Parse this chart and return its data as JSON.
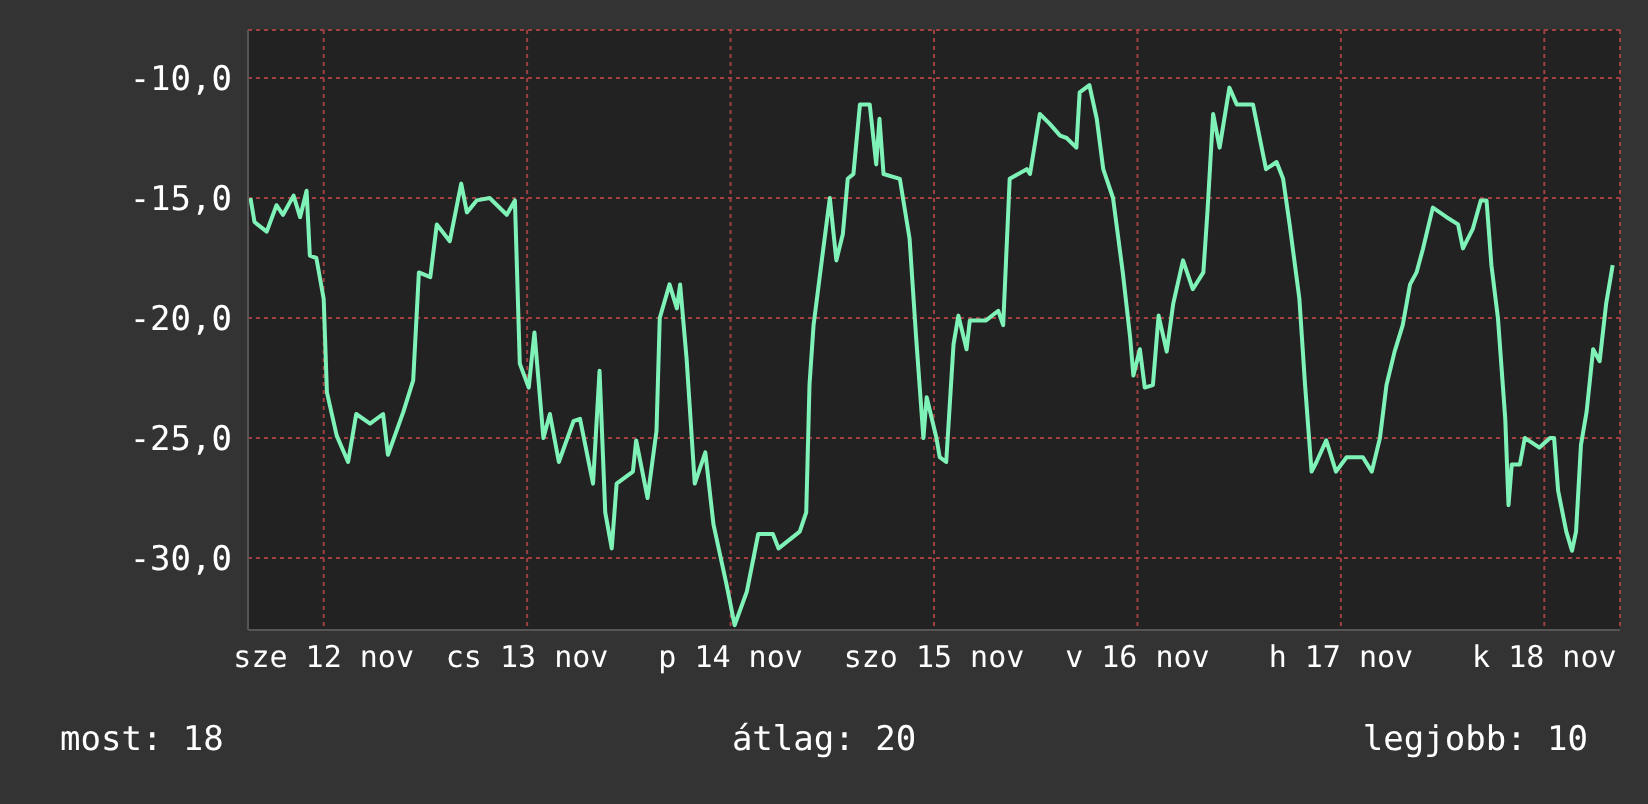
{
  "chart_data": {
    "type": "line",
    "x": [
      "--11-11T20:48",
      "--11-11T21:18",
      "--11-11T22:48",
      "--11-12T00:00",
      "--11-12T00:48",
      "--11-12T02:06",
      "--11-12T02:54",
      "--11-12T03:42",
      "--11-12T04:06",
      "--11-12T04:54",
      "--11-12T05:48",
      "--11-12T06:12",
      "--11-12T07:24",
      "--11-12T08:48",
      "--11-12T09:48",
      "--11-12T11:30",
      "--11-12T13:06",
      "--11-12T13:42",
      "--11-12T15:36",
      "--11-12T16:48",
      "--11-12T17:30",
      "--11-12T18:54",
      "--11-12T19:42",
      "--11-12T21:18",
      "--11-12T22:42",
      "--11-12T23:24",
      "--11-13T00:36",
      "--11-13T02:12",
      "--11-13T04:18",
      "--11-13T05:18",
      "--11-13T05:54",
      "--11-13T07:00",
      "--11-13T07:42",
      "--11-13T08:48",
      "--11-13T09:36",
      "--11-13T10:42",
      "--11-13T12:30",
      "--11-13T13:18",
      "--11-13T14:54",
      "--11-13T15:42",
      "--11-13T16:24",
      "--11-13T17:12",
      "--11-13T17:48",
      "--11-13T19:48",
      "--11-13T20:12",
      "--11-13T21:36",
      "--11-13T22:42",
      "--11-13T23:06",
      "--11-14T00:18",
      "--11-14T01:12",
      "--11-14T01:36",
      "--11-14T02:24",
      "--11-14T03:24",
      "--11-14T04:42",
      "--11-14T05:42",
      "--11-14T07:18",
      "--11-14T08:18",
      "--11-14T09:48",
      "--11-14T11:12",
      "--11-14T13:00",
      "--11-14T13:42",
      "--11-14T16:18",
      "--11-14T17:06",
      "--11-14T17:30",
      "--11-14T18:00",
      "--11-14T19:12",
      "--11-14T20:00",
      "--11-14T20:48",
      "--11-14T21:36",
      "--11-14T22:12",
      "--11-14T22:54",
      "--11-14T23:42",
      "--11-15T00:54",
      "--11-15T01:42",
      "--11-15T02:06",
      "--11-15T02:36",
      "--11-15T04:36",
      "--11-15T05:48",
      "--11-15T06:36",
      "--11-15T07:30",
      "--11-15T07:54",
      "--11-15T09:06",
      "--11-15T09:30",
      "--11-15T10:18",
      "--11-15T11:12",
      "--11-15T11:48",
      "--11-15T12:48",
      "--11-15T13:12",
      "--11-15T15:12",
      "--11-15T16:42",
      "--11-15T17:18",
      "--11-15T18:06",
      "--11-15T20:12",
      "--11-15T20:36",
      "--11-15T21:48",
      "--11-15T23:00",
      "--11-16T00:18",
      "--11-16T01:06",
      "--11-16T02:18",
      "--11-16T02:42",
      "--11-16T03:54",
      "--11-16T04:48",
      "--11-16T05:36",
      "--11-16T06:48",
      "--11-16T08:00",
      "--11-16T08:54",
      "--11-16T09:18",
      "--11-16T10:06",
      "--11-16T10:42",
      "--11-16T11:42",
      "--11-16T12:24",
      "--11-16T13:24",
      "--11-16T14:12",
      "--11-16T15:24",
      "--11-16T16:36",
      "--11-16T17:54",
      "--11-16T18:24",
      "--11-16T19:06",
      "--11-16T19:54",
      "--11-16T21:06",
      "--11-16T22:00",
      "--11-17T00:00",
      "--11-17T01:36",
      "--11-17T02:54",
      "--11-17T03:42",
      "--11-17T04:30",
      "--11-17T05:42",
      "--11-17T06:24",
      "--11-17T07:12",
      "--11-17T07:48",
      "--11-17T09:00",
      "--11-17T10:12",
      "--11-17T11:30",
      "--11-17T13:30",
      "--11-17T14:36",
      "--11-17T15:36",
      "--11-17T16:24",
      "--11-17T17:24",
      "--11-17T18:24",
      "--11-17T19:18",
      "--11-17T20:06",
      "--11-17T20:54",
      "--11-17T22:06",
      "--11-17T23:48",
      "--11-18T01:12",
      "--11-18T01:48",
      "--11-18T03:00",
      "--11-18T04:00",
      "--11-18T04:42",
      "--11-18T05:18",
      "--11-18T06:06",
      "--11-18T07:00",
      "--11-18T07:24",
      "--11-18T07:48",
      "--11-18T08:48",
      "--11-18T09:24",
      "--11-18T11:12",
      "--11-18T12:30",
      "--11-18T13:00",
      "--11-18T13:30",
      "--11-18T14:30",
      "--11-18T15:12",
      "--11-18T15:42",
      "--11-18T16:18",
      "--11-18T17:00",
      "--11-18T17:48",
      "--11-18T18:36",
      "--11-18T19:24",
      "--11-18T20:12"
    ],
    "series": [
      {
        "color": "#7ff2b8",
        "values": [
          -15.0,
          -16.0,
          -16.4,
          -15.3,
          -15.7,
          -14.9,
          -15.8,
          -14.7,
          -17.4,
          -17.5,
          -19.2,
          -23.1,
          -24.9,
          -26.0,
          -24.0,
          -24.4,
          -24.0,
          -25.7,
          -23.9,
          -22.6,
          -18.1,
          -18.3,
          -16.1,
          -16.8,
          -14.4,
          -15.6,
          -15.1,
          -15.0,
          -15.7,
          -15.1,
          -21.9,
          -22.9,
          -20.6,
          -25.0,
          -24.0,
          -26.0,
          -24.3,
          -24.2,
          -26.9,
          -22.2,
          -28.1,
          -29.6,
          -26.9,
          -26.4,
          -25.1,
          -27.5,
          -24.7,
          -20.0,
          -18.6,
          -19.6,
          -18.6,
          -21.7,
          -26.9,
          -25.6,
          -28.6,
          -31.1,
          -32.8,
          -31.4,
          -29.0,
          -29.0,
          -29.6,
          -28.9,
          -28.1,
          -22.8,
          -20.3,
          -17.1,
          -15.0,
          -17.6,
          -16.5,
          -14.2,
          -14.0,
          -11.1,
          -11.1,
          -13.6,
          -11.7,
          -14.0,
          -14.2,
          -16.7,
          -20.8,
          -25.0,
          -23.3,
          -25.0,
          -25.8,
          -26.0,
          -21.1,
          -19.9,
          -21.3,
          -20.1,
          -20.1,
          -19.7,
          -20.3,
          -14.2,
          -13.8,
          -14.0,
          -11.5,
          -11.9,
          -12.4,
          -12.5,
          -12.9,
          -10.6,
          -10.3,
          -11.7,
          -13.8,
          -15.0,
          -18.1,
          -20.8,
          -22.4,
          -21.3,
          -22.9,
          -22.8,
          -19.9,
          -21.4,
          -19.4,
          -17.6,
          -18.8,
          -18.1,
          -15.6,
          -11.5,
          -12.9,
          -10.4,
          -11.1,
          -11.1,
          -13.8,
          -13.5,
          -14.2,
          -16.1,
          -19.2,
          -22.8,
          -26.4,
          -26.0,
          -25.1,
          -26.4,
          -25.8,
          -25.8,
          -26.4,
          -25.0,
          -22.8,
          -21.4,
          -20.3,
          -18.6,
          -18.1,
          -17.1,
          -15.4,
          -15.8,
          -16.1,
          -17.1,
          -16.3,
          -15.1,
          -15.1,
          -17.8,
          -20.0,
          -24.2,
          -27.8,
          -26.1,
          -26.1,
          -25.0,
          -25.4,
          -25.0,
          -25.0,
          -27.2,
          -28.9,
          -29.7,
          -28.9,
          -25.3,
          -23.9,
          -21.3,
          -21.8,
          -19.4,
          -17.8
        ]
      }
    ],
    "xlim": [
      "--11-11T20:30",
      "--11-18T21:06"
    ],
    "xticks": [
      {
        "value": "--11-12T05:48",
        "label": "sze 12 nov"
      },
      {
        "value": "--11-13T06:48",
        "label": "cs 13 nov"
      },
      {
        "value": "--11-14T07:48",
        "label": "p 14 nov"
      },
      {
        "value": "--11-15T08:48",
        "label": "szo 15 nov"
      },
      {
        "value": "--11-16T09:48",
        "label": "v 16 nov"
      },
      {
        "value": "--11-17T10:48",
        "label": "h 17 nov"
      },
      {
        "value": "--11-18T11:48",
        "label": "k 18 nov"
      }
    ],
    "ylim": [
      -33,
      -8
    ],
    "yticks": [
      {
        "value": -30,
        "label": "-30,0"
      },
      {
        "value": -25,
        "label": "-25,0"
      },
      {
        "value": -20,
        "label": "-20,0"
      },
      {
        "value": -15,
        "label": "-15,0"
      },
      {
        "value": -10,
        "label": "-10,0"
      }
    ],
    "grid": true,
    "annotations": [
      "most: 18",
      "átlag: 20",
      "legjobb: 10"
    ]
  }
}
